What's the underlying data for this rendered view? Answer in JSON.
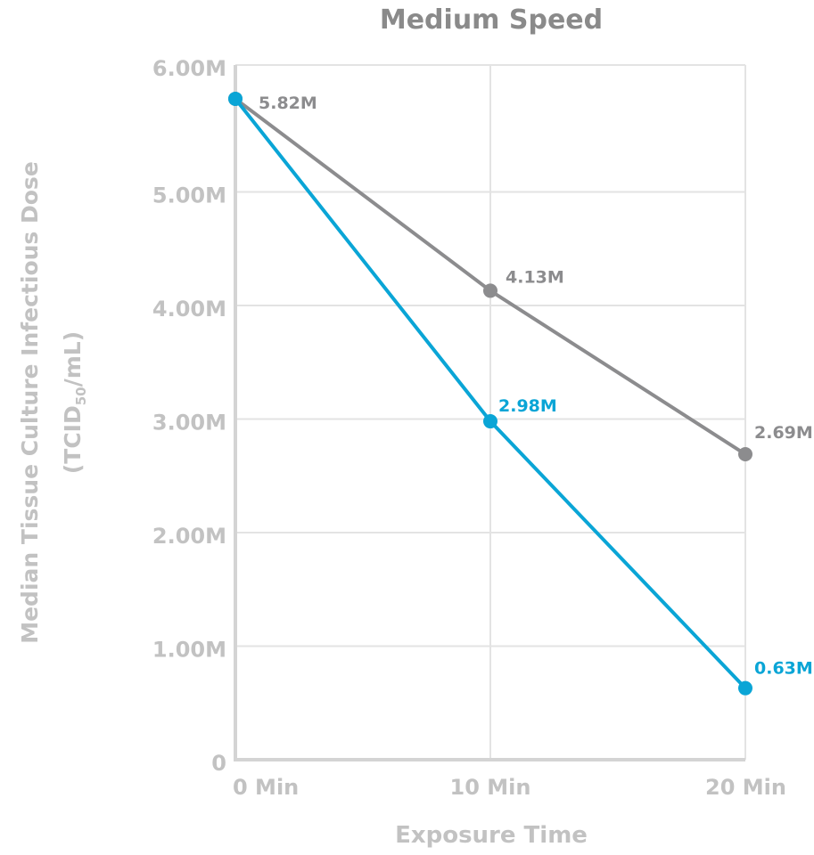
{
  "chart_data": {
    "type": "line",
    "title": "Medium Speed",
    "xlabel": "Exposure Time",
    "ylabel_line1": "Median Tissue Culture Infectious Dose",
    "ylabel_line2_prefix": "(TCID",
    "ylabel_line2_sub": "50",
    "ylabel_line2_suffix": "/mL)",
    "categories": [
      "0 Min",
      "10 Min",
      "20 Min"
    ],
    "x": [
      0,
      10,
      20
    ],
    "ylim": [
      0,
      6000000
    ],
    "yticks": [
      0,
      1000000,
      2000000,
      3000000,
      4000000,
      5000000,
      6000000
    ],
    "ytick_labels": [
      "0",
      "1.00M",
      "2.00M",
      "3.00M",
      "4.00M",
      "5.00M",
      "6.00M"
    ],
    "grid": true,
    "series": [
      {
        "color": "#8c8c8e",
        "values": [
          5820000,
          4130000,
          2690000
        ],
        "labels": [
          "5.82M",
          "4.13M",
          "2.69M"
        ]
      },
      {
        "color": "#0aa5d6",
        "values": [
          5820000,
          2980000,
          630000
        ],
        "labels": [
          "",
          "2.98M",
          "0.63M"
        ]
      }
    ],
    "axis_text_color": "#c2c2c2",
    "title_color": "#8a8a8a",
    "grid_color": "#e3e3e3"
  }
}
